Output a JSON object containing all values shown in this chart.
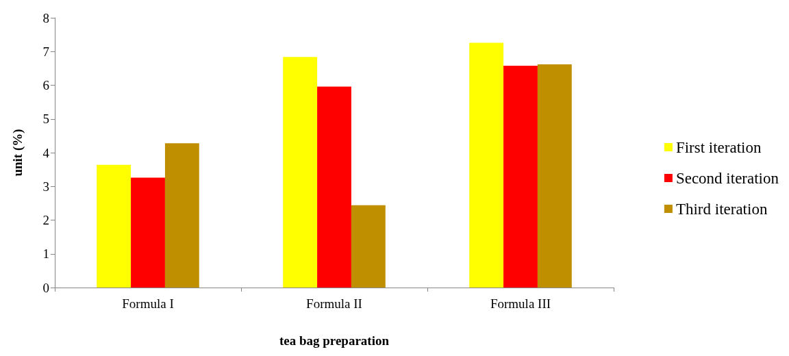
{
  "chart_data": {
    "type": "bar",
    "xlabel": "tea bag preparation",
    "ylabel": "unit (%)",
    "categories": [
      "Formula I",
      "Formula II",
      "Formula III"
    ],
    "series": [
      {
        "name": "First iteration",
        "color": "#ffff00",
        "values": [
          3.64,
          6.84,
          7.26
        ]
      },
      {
        "name": "Second iteration",
        "color": "#ff0000",
        "values": [
          3.26,
          5.96,
          6.58
        ]
      },
      {
        "name": "Third iteration",
        "color": "#bf8f00",
        "values": [
          4.28,
          2.44,
          6.62
        ]
      }
    ],
    "ylim": [
      0,
      8
    ],
    "yticks": [
      0,
      1,
      2,
      3,
      4,
      5,
      6,
      7,
      8
    ],
    "grid": false,
    "legend": "right"
  }
}
